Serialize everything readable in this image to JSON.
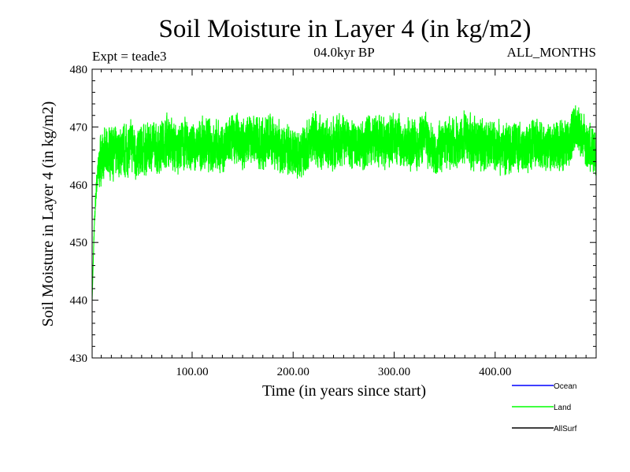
{
  "chart_data": {
    "type": "line",
    "title": "Soil Moisture in Layer 4 (in kg/m2)",
    "subtitle_left": "Expt = teade3",
    "subtitle_center": "04.0kyr BP",
    "subtitle_right": "ALL_MONTHS",
    "xlabel": "Time (in years since start)",
    "ylabel": "Soil Moisture in Layer 4 (in kg/m2)",
    "xlim": [
      1,
      500
    ],
    "ylim": [
      430,
      480
    ],
    "x_ticks": [
      100,
      200,
      300,
      400
    ],
    "x_tick_labels": [
      "100.00",
      "200.00",
      "300.00",
      "400.00"
    ],
    "y_ticks": [
      430,
      440,
      450,
      460,
      470,
      480
    ],
    "y_tick_labels": [
      "430",
      "440",
      "450",
      "460",
      "470",
      "480"
    ],
    "series": [
      {
        "name": "Land",
        "color": "#00ff00",
        "x": [
          1,
          2,
          3,
          4,
          5,
          6,
          7,
          8,
          9,
          10,
          15,
          20,
          25,
          30,
          35,
          40,
          45,
          50,
          55,
          60,
          65,
          70,
          75,
          80,
          85,
          90,
          95,
          100,
          110,
          120,
          130,
          140,
          150,
          160,
          170,
          180,
          190,
          200,
          210,
          220,
          230,
          240,
          250,
          260,
          270,
          280,
          290,
          300,
          310,
          320,
          330,
          340,
          350,
          360,
          370,
          380,
          390,
          400,
          410,
          420,
          430,
          440,
          450,
          460,
          470,
          475,
          480,
          485,
          490,
          495,
          500
        ],
        "values": [
          440,
          446,
          452,
          456,
          459,
          461,
          462,
          463,
          464,
          465,
          465,
          466,
          465,
          466,
          466,
          467,
          465,
          466,
          466,
          467,
          466,
          467,
          468,
          467,
          466,
          467,
          467,
          466,
          467,
          467,
          466,
          468,
          467,
          468,
          467,
          468,
          466,
          465,
          466,
          468,
          467,
          467,
          468,
          467,
          467,
          468,
          467,
          468,
          467,
          467,
          468,
          466,
          467,
          467,
          468,
          467,
          467,
          467,
          466,
          467,
          466,
          467,
          466,
          467,
          467,
          468,
          470,
          469,
          467,
          466,
          465
        ],
        "amplitude": 4.5,
        "samples_per_year": 12
      },
      {
        "name": "Ocean",
        "color": "#0000ff",
        "values": []
      },
      {
        "name": "AllSurf",
        "color": "#000000",
        "values": []
      }
    ],
    "legend_position": "bottom-right"
  }
}
